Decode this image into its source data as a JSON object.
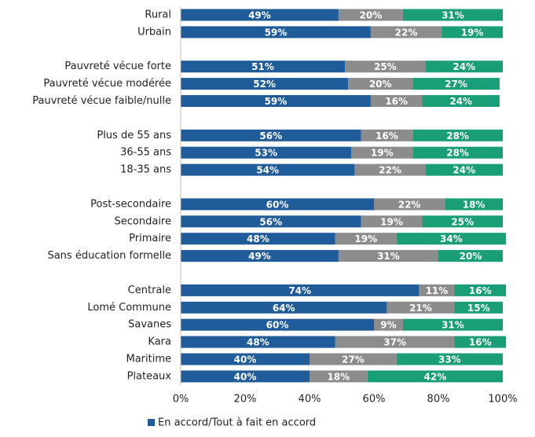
{
  "chart_data": {
    "type": "stacked_bar_horizontal",
    "categories": [
      "Rural",
      "Urbain",
      null,
      "Pauvreté vécue forte",
      "Pauvreté vécue modérée",
      "Pauvreté vécue faible/nulle",
      null,
      "Plus de 55 ans",
      "36-55 ans",
      "18-35 ans",
      null,
      "Post-secondaire",
      "Secondaire",
      "Primaire",
      "Sans éducation formelle",
      null,
      "Centrale",
      "Lomé Commune",
      "Savanes",
      "Kara",
      "Maritime",
      "Plateaux"
    ],
    "series": [
      {
        "name": "En accord/Tout à fait en accord",
        "color": "#1f5c99",
        "values": [
          49,
          59,
          null,
          51,
          52,
          59,
          null,
          56,
          53,
          54,
          null,
          60,
          56,
          48,
          49,
          null,
          74,
          64,
          60,
          48,
          40,
          40
        ],
        "value_labels": [
          "49%",
          "59%",
          null,
          "51%",
          "52%",
          "59%",
          null,
          "56%",
          "53%",
          "54%",
          null,
          "60%",
          "56%",
          "48%",
          "49%",
          null,
          "74%",
          "64%",
          "60%",
          "48%",
          "40%",
          "40%"
        ]
      },
      {
        "color": "#8c8c8c",
        "values": [
          20,
          22,
          null,
          25,
          20,
          16,
          null,
          16,
          19,
          22,
          null,
          22,
          19,
          19,
          31,
          null,
          11,
          21,
          9,
          37,
          27,
          18
        ],
        "value_labels": [
          "20%",
          "22%",
          null,
          "25%",
          "20%",
          "16%",
          null,
          "16%",
          "19%",
          "22%",
          null,
          "22%",
          "19%",
          "19%",
          "31%",
          null,
          "11%",
          "21%",
          "9%",
          "37%",
          "27%",
          "18%"
        ]
      },
      {
        "color": "#1a9e77",
        "values": [
          31,
          19,
          null,
          24,
          27,
          24,
          null,
          28,
          28,
          24,
          null,
          18,
          25,
          34,
          20,
          null,
          16,
          15,
          31,
          16,
          33,
          42
        ],
        "value_labels": [
          "31%",
          "19%",
          null,
          "24%",
          "27%",
          "24%",
          null,
          "28%",
          "28%",
          "24%",
          null,
          "18%",
          "25%",
          "34%",
          "20%",
          null,
          "16%",
          "15%",
          "31%",
          "16%",
          "33%",
          "42%"
        ]
      }
    ],
    "xlim": [
      0,
      100
    ],
    "xticks": [
      {
        "value": 0,
        "label": "0%"
      },
      {
        "value": 20,
        "label": "20%"
      },
      {
        "value": 40,
        "label": "40%"
      },
      {
        "value": 60,
        "label": "60%"
      },
      {
        "value": 80,
        "label": "80%"
      },
      {
        "value": 100,
        "label": "100%"
      }
    ],
    "grid": false
  }
}
